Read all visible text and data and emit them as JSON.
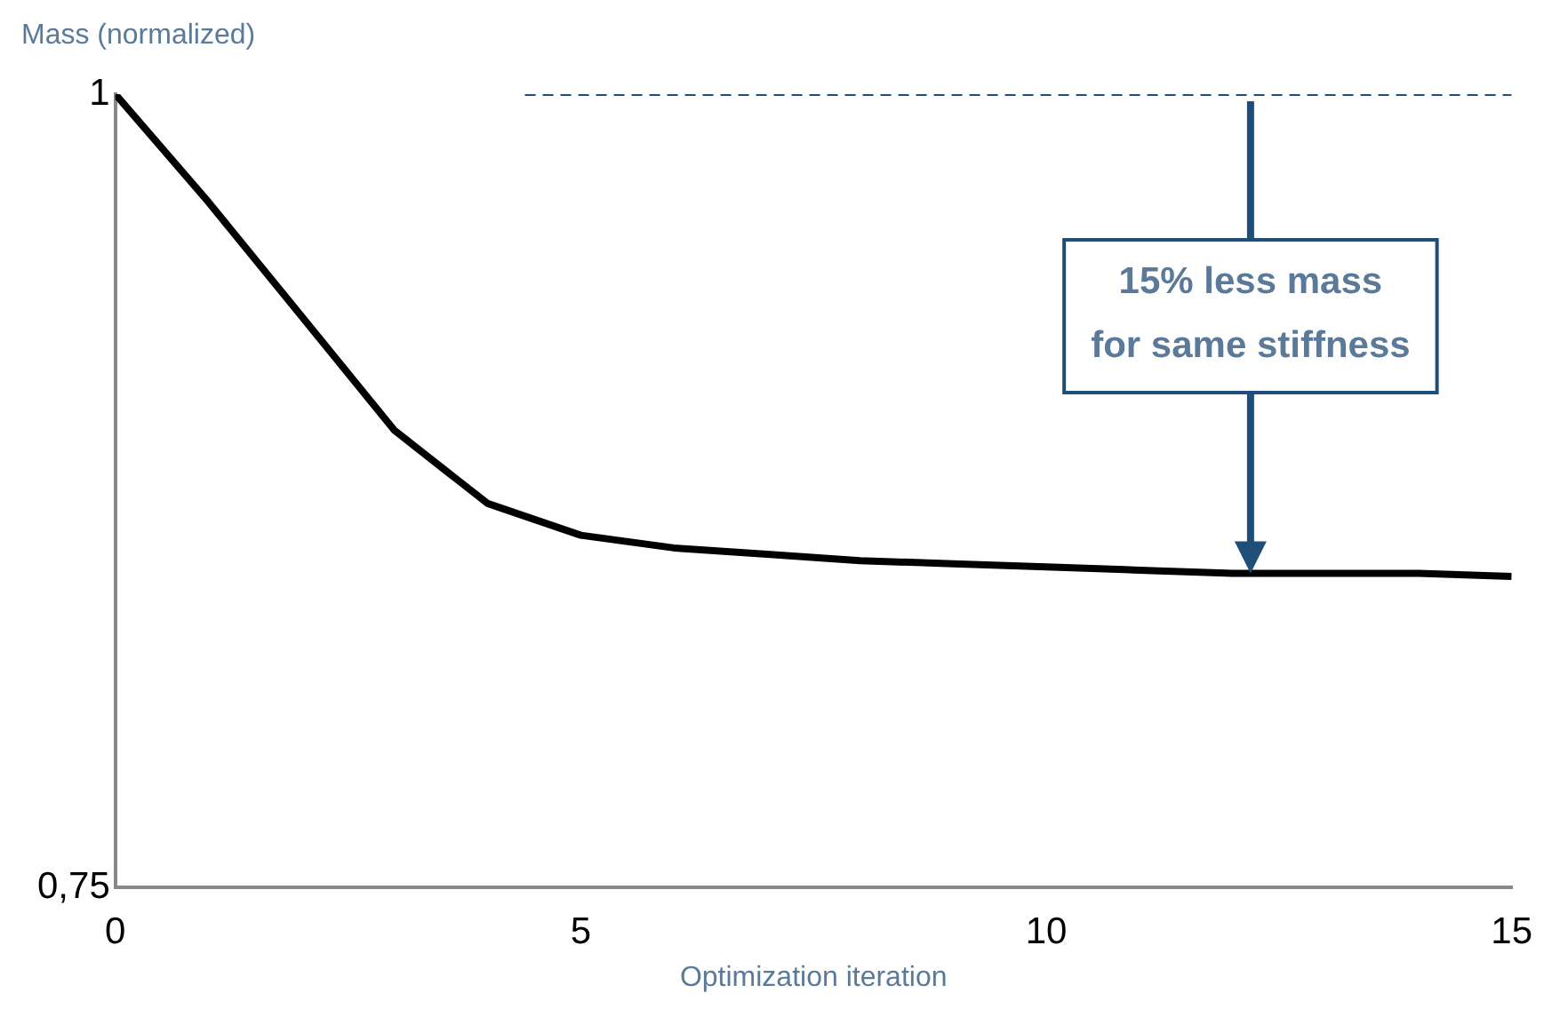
{
  "chart_data": {
    "type": "line",
    "xlabel": "Optimization iteration",
    "ylabel": "Mass (normalized)",
    "x": [
      0,
      1,
      2,
      3,
      4,
      5,
      6,
      7,
      8,
      9,
      10,
      11,
      12,
      13,
      14,
      15
    ],
    "series": [
      {
        "color": "#000000",
        "values": [
          1,
          0.966,
          0.93,
          0.894,
          0.871,
          0.861,
          0.857,
          0.855,
          0.853,
          0.852,
          0.851,
          0.85,
          0.849,
          0.849,
          0.849,
          0.848
        ]
      },
      {
        "color": "#1f4e79",
        "line_style": "dashed",
        "x": [
          4.4,
          15
        ],
        "values": [
          1,
          1
        ]
      }
    ],
    "xlim": [
      0,
      15
    ],
    "xticks": [
      0,
      5,
      10,
      15
    ],
    "ylim": [
      0.75,
      1
    ],
    "yticks": [
      {
        "value": 0.75,
        "label": "0,75"
      },
      1
    ],
    "grid": false,
    "legend": false,
    "marker": "none",
    "annotations": [
      "15% less mass for same stiffness"
    ]
  }
}
